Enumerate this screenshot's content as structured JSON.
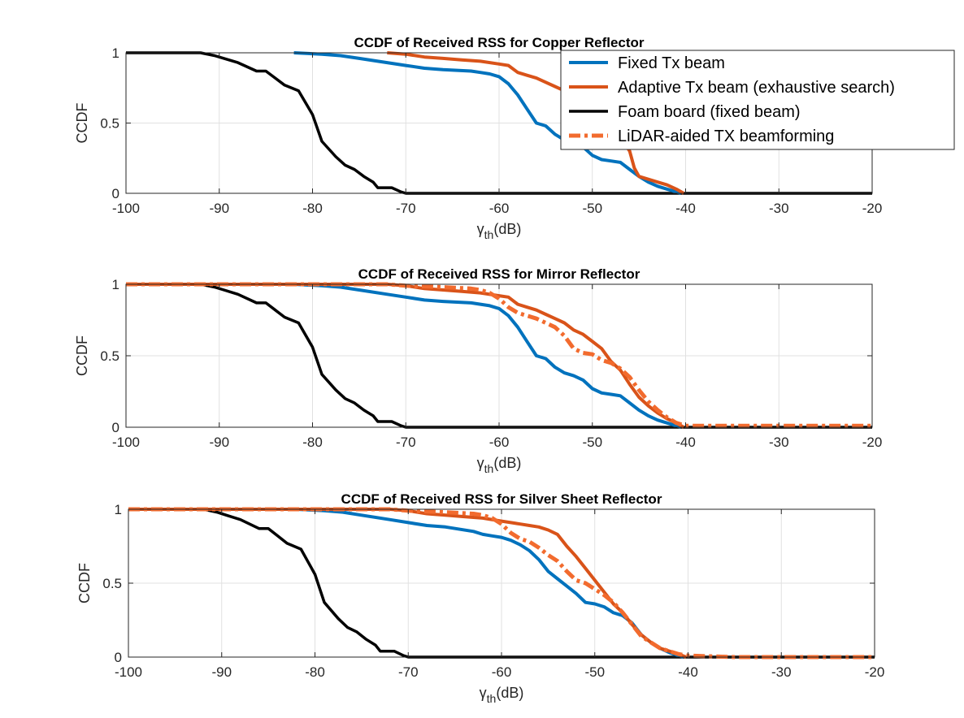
{
  "colors": {
    "fixed": "#0072BD",
    "adaptive": "#D95319",
    "foam": "#000000",
    "lidar": "#F26B2E",
    "grid": "#e1e1e1",
    "axis": "#262626"
  },
  "chart_data": [
    {
      "type": "line",
      "title": "CCDF of Received RSS for Copper Reflector",
      "xlabel_main": "γ",
      "xlabel_sub": "th",
      "xlabel_unit": "(dB)",
      "ylabel": "CCDF",
      "xlim": [
        -100,
        -20
      ],
      "ylim": [
        0,
        1
      ],
      "xticks": [
        -100,
        -90,
        -80,
        -70,
        -60,
        -50,
        -40,
        -30,
        -20
      ],
      "xtick_labels": [
        "-100",
        "-90",
        "-80",
        "-70",
        "-60",
        "-50",
        "-40",
        "-30",
        "-20"
      ],
      "yticks": [
        0,
        0.5,
        1
      ],
      "ytick_labels": [
        "0",
        "0.5",
        "1"
      ],
      "grid": true,
      "legend": {
        "location": "top-right",
        "entries": [
          "Fixed Tx beam",
          "Adaptive Tx beam (exhaustive search)",
          "Foam board (fixed beam)",
          "LiDAR-aided TX beamforming"
        ]
      },
      "series": [
        {
          "name": "Foam board (fixed beam)",
          "key": "foam",
          "style": "solid",
          "x": [
            -100,
            -92,
            -90.5,
            -89.5,
            -88,
            -86,
            -85,
            -84,
            -83,
            -81.5,
            -80,
            -79,
            -77.5,
            -76.5,
            -75.5,
            -74.5,
            -73.5,
            -73,
            -71.5,
            -70.5,
            -70,
            -20
          ],
          "y": [
            1,
            1,
            0.98,
            0.96,
            0.93,
            0.87,
            0.87,
            0.82,
            0.77,
            0.73,
            0.56,
            0.37,
            0.26,
            0.2,
            0.17,
            0.12,
            0.08,
            0.04,
            0.04,
            0.01,
            0,
            0
          ]
        },
        {
          "name": "Fixed Tx beam",
          "key": "fixed",
          "style": "solid",
          "x": [
            -82,
            -79,
            -77,
            -75,
            -72,
            -70,
            -68,
            -66,
            -63,
            -62,
            -61,
            -60,
            -59,
            -58,
            -57,
            -56,
            -55,
            -54,
            -53,
            -52,
            -51,
            -50,
            -49,
            -48,
            -47,
            -46,
            -45,
            -44,
            -43,
            -42,
            -41,
            -40.5
          ],
          "y": [
            1,
            0.99,
            0.98,
            0.96,
            0.93,
            0.91,
            0.89,
            0.88,
            0.87,
            0.86,
            0.85,
            0.83,
            0.78,
            0.7,
            0.6,
            0.5,
            0.48,
            0.42,
            0.38,
            0.36,
            0.33,
            0.27,
            0.24,
            0.23,
            0.22,
            0.17,
            0.12,
            0.08,
            0.05,
            0.03,
            0.01,
            0
          ]
        },
        {
          "name": "Adaptive Tx beam (exhaustive search)",
          "key": "adaptive",
          "style": "solid",
          "x": [
            -72,
            -70,
            -68,
            -66,
            -64,
            -62,
            -60,
            -59,
            -58,
            -57,
            -56,
            -55,
            -54,
            -53,
            -52,
            -51,
            -50,
            -49,
            -48,
            -47,
            -46,
            -45.5,
            -45,
            -44,
            -43,
            -42,
            -41,
            -40.2
          ],
          "y": [
            1,
            0.99,
            0.97,
            0.96,
            0.95,
            0.94,
            0.92,
            0.91,
            0.86,
            0.84,
            0.82,
            0.79,
            0.76,
            0.73,
            0.68,
            0.65,
            0.6,
            0.55,
            0.46,
            0.4,
            0.3,
            0.18,
            0.12,
            0.1,
            0.08,
            0.06,
            0.03,
            0
          ]
        }
      ]
    },
    {
      "type": "line",
      "title": "CCDF of Received RSS for Mirror Reflector",
      "xlabel_main": "γ",
      "xlabel_sub": "th",
      "xlabel_unit": "(dB)",
      "ylabel": "CCDF",
      "xlim": [
        -100,
        -20
      ],
      "ylim": [
        0,
        1
      ],
      "xticks": [
        -100,
        -90,
        -80,
        -70,
        -60,
        -50,
        -40,
        -30,
        -20
      ],
      "xtick_labels": [
        "-100",
        "-90",
        "-80",
        "-70",
        "-60",
        "-50",
        "-40",
        "-30",
        "-20"
      ],
      "yticks": [
        0,
        0.5,
        1
      ],
      "ytick_labels": [
        "0",
        "0.5",
        "1"
      ],
      "grid": true,
      "series": [
        {
          "name": "Foam board (fixed beam)",
          "key": "foam",
          "style": "solid",
          "x": [
            -100,
            -92,
            -90.5,
            -89.5,
            -88,
            -86,
            -85,
            -84,
            -83,
            -81.5,
            -80,
            -79,
            -77.5,
            -76.5,
            -75.5,
            -74.5,
            -73.5,
            -73,
            -71.5,
            -70.5,
            -70,
            -20
          ],
          "y": [
            1,
            1,
            0.98,
            0.96,
            0.93,
            0.87,
            0.87,
            0.82,
            0.77,
            0.73,
            0.56,
            0.37,
            0.26,
            0.2,
            0.17,
            0.12,
            0.08,
            0.04,
            0.04,
            0.01,
            0,
            0
          ]
        },
        {
          "name": "Fixed Tx beam",
          "key": "fixed",
          "style": "solid",
          "x": [
            -100,
            -82,
            -79,
            -77,
            -75,
            -72,
            -70,
            -68,
            -66,
            -63,
            -62,
            -61,
            -60,
            -59,
            -58,
            -57,
            -56,
            -55,
            -54,
            -53,
            -52,
            -51,
            -50,
            -49,
            -48,
            -47,
            -46,
            -45,
            -44,
            -43,
            -42,
            -41,
            -40.5
          ],
          "y": [
            1,
            1,
            0.99,
            0.98,
            0.96,
            0.93,
            0.91,
            0.89,
            0.88,
            0.87,
            0.86,
            0.85,
            0.83,
            0.78,
            0.7,
            0.6,
            0.5,
            0.48,
            0.42,
            0.38,
            0.36,
            0.33,
            0.27,
            0.24,
            0.23,
            0.22,
            0.17,
            0.12,
            0.08,
            0.05,
            0.03,
            0.01,
            0
          ]
        },
        {
          "name": "Adaptive Tx beam (exhaustive search)",
          "key": "adaptive",
          "style": "solid",
          "x": [
            -100,
            -72,
            -70,
            -68,
            -66,
            -64,
            -62,
            -60,
            -59,
            -58,
            -57,
            -56,
            -55,
            -54,
            -53,
            -52,
            -51,
            -50,
            -49,
            -48,
            -47,
            -46,
            -45,
            -44,
            -43,
            -42,
            -41,
            -40.2
          ],
          "y": [
            1,
            1,
            0.99,
            0.97,
            0.96,
            0.95,
            0.94,
            0.92,
            0.91,
            0.86,
            0.84,
            0.82,
            0.79,
            0.76,
            0.73,
            0.68,
            0.65,
            0.6,
            0.55,
            0.46,
            0.4,
            0.3,
            0.21,
            0.15,
            0.1,
            0.06,
            0.03,
            0
          ]
        },
        {
          "name": "LiDAR-aided TX beamforming",
          "key": "lidar",
          "style": "dashdot",
          "x": [
            -100,
            -72,
            -70,
            -66,
            -63,
            -62,
            -61,
            -60,
            -59,
            -58,
            -57,
            -56,
            -55,
            -54,
            -53,
            -52,
            -51,
            -50,
            -49,
            -48,
            -47,
            -46,
            -45,
            -44,
            -43,
            -42,
            -41,
            -40,
            -20
          ],
          "y": [
            1,
            1,
            0.99,
            0.98,
            0.97,
            0.96,
            0.94,
            0.9,
            0.84,
            0.8,
            0.78,
            0.76,
            0.73,
            0.7,
            0.64,
            0.55,
            0.52,
            0.51,
            0.47,
            0.45,
            0.41,
            0.35,
            0.26,
            0.18,
            0.12,
            0.07,
            0.03,
            0.01,
            0.01
          ]
        }
      ]
    },
    {
      "type": "line",
      "title": "CCDF of Received RSS for Silver Sheet Reflector",
      "xlabel_main": "γ",
      "xlabel_sub": "th",
      "xlabel_unit": "(dB)",
      "ylabel": "CCDF",
      "xlim": [
        -100,
        -20
      ],
      "ylim": [
        0,
        1
      ],
      "xticks": [
        -100,
        -90,
        -80,
        -70,
        -60,
        -50,
        -40,
        -30,
        -20
      ],
      "xtick_labels": [
        "-100",
        "-90",
        "-80",
        "-70",
        "-60",
        "-50",
        "-40",
        "-30",
        "-20"
      ],
      "yticks": [
        0,
        0.5,
        1
      ],
      "ytick_labels": [
        "0",
        "0.5",
        "1"
      ],
      "grid": true,
      "series": [
        {
          "name": "Foam board (fixed beam)",
          "key": "foam",
          "style": "solid",
          "x": [
            -100,
            -92,
            -90.5,
            -89.5,
            -88,
            -86,
            -85,
            -84,
            -83,
            -81.5,
            -80,
            -79,
            -77.5,
            -76.5,
            -75.5,
            -74.5,
            -73.5,
            -73,
            -71.5,
            -70.5,
            -70,
            -20
          ],
          "y": [
            1,
            1,
            0.98,
            0.96,
            0.93,
            0.87,
            0.87,
            0.82,
            0.77,
            0.73,
            0.56,
            0.37,
            0.26,
            0.2,
            0.17,
            0.12,
            0.08,
            0.04,
            0.04,
            0.01,
            0,
            0
          ]
        },
        {
          "name": "Fixed Tx beam",
          "key": "fixed",
          "style": "solid",
          "x": [
            -100,
            -82,
            -79,
            -77,
            -75,
            -72,
            -70,
            -68,
            -66,
            -63,
            -62,
            -61,
            -60,
            -59,
            -58,
            -57,
            -56,
            -55,
            -54,
            -53,
            -52,
            -51,
            -50,
            -49,
            -48,
            -47,
            -46,
            -45,
            -44,
            -43,
            -42,
            -41,
            -40.5
          ],
          "y": [
            1,
            1,
            0.99,
            0.98,
            0.96,
            0.93,
            0.91,
            0.89,
            0.88,
            0.85,
            0.83,
            0.82,
            0.81,
            0.79,
            0.76,
            0.72,
            0.66,
            0.58,
            0.53,
            0.48,
            0.43,
            0.37,
            0.36,
            0.34,
            0.3,
            0.28,
            0.23,
            0.15,
            0.1,
            0.06,
            0.03,
            0.01,
            0
          ]
        },
        {
          "name": "Adaptive Tx beam (exhaustive search)",
          "key": "adaptive",
          "style": "solid",
          "x": [
            -100,
            -72,
            -70,
            -68,
            -66,
            -64,
            -62,
            -60,
            -59,
            -58,
            -57,
            -56,
            -55,
            -54,
            -53,
            -52,
            -51,
            -50,
            -49,
            -48,
            -47,
            -46,
            -45,
            -44,
            -43,
            -42,
            -41,
            -40.2
          ],
          "y": [
            1,
            1,
            0.99,
            0.97,
            0.96,
            0.95,
            0.94,
            0.92,
            0.91,
            0.9,
            0.89,
            0.88,
            0.86,
            0.83,
            0.75,
            0.68,
            0.6,
            0.52,
            0.44,
            0.36,
            0.3,
            0.22,
            0.15,
            0.1,
            0.06,
            0.04,
            0.02,
            0
          ]
        },
        {
          "name": "LiDAR-aided TX beamforming",
          "key": "lidar",
          "style": "dashdot",
          "x": [
            -100,
            -72,
            -70,
            -66,
            -63,
            -62,
            -61,
            -60,
            -59,
            -58,
            -57,
            -56,
            -55,
            -54,
            -53,
            -52,
            -51,
            -50,
            -49,
            -48,
            -47,
            -46,
            -45,
            -44,
            -43,
            -42,
            -41,
            -40,
            -35,
            -20
          ],
          "y": [
            1,
            1,
            0.99,
            0.98,
            0.97,
            0.96,
            0.94,
            0.9,
            0.84,
            0.8,
            0.78,
            0.74,
            0.69,
            0.65,
            0.58,
            0.52,
            0.5,
            0.46,
            0.42,
            0.37,
            0.3,
            0.22,
            0.14,
            0.1,
            0.06,
            0.04,
            0.02,
            0.01,
            0,
            0
          ]
        }
      ]
    }
  ]
}
